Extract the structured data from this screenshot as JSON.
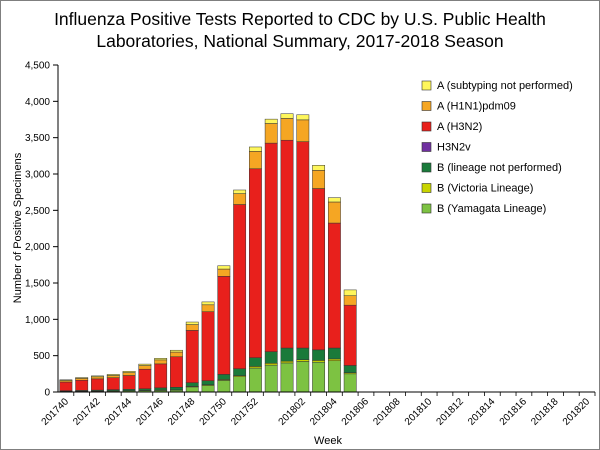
{
  "chart_data": {
    "type": "bar",
    "stacked": true,
    "title_line1": "Influenza Positive Tests Reported to CDC by U.S. Public Health",
    "title_line2": "Laboratories, National Summary, 2017-2018 Season",
    "xlabel": "Week",
    "ylabel": "Number of Positive Specimens",
    "ylim": [
      0,
      4500
    ],
    "yticks": [
      0,
      500,
      1000,
      1500,
      2000,
      2500,
      3000,
      3500,
      4000,
      4500
    ],
    "ytick_labels": [
      "0",
      "500",
      "1,000",
      "1,500",
      "2,000",
      "2,500",
      "3,000",
      "3,500",
      "4,000",
      "4,500"
    ],
    "categories": [
      "201740",
      "201741",
      "201742",
      "201743",
      "201744",
      "201745",
      "201746",
      "201747",
      "201748",
      "201749",
      "201750",
      "201751",
      "201752",
      "201753",
      "201801",
      "201802",
      "201803",
      "201804",
      "201805",
      "201806",
      "201807",
      "201808",
      "201809",
      "201810",
      "201811",
      "201812",
      "201813",
      "201814",
      "201815",
      "201816",
      "201817",
      "201818",
      "201819",
      "201820"
    ],
    "xtick_labels": [
      "201740",
      "201742",
      "201744",
      "201746",
      "201748",
      "201750",
      "201752",
      "201802",
      "201804",
      "201806",
      "201808",
      "201810",
      "201812",
      "201814",
      "201816",
      "201818",
      "201820"
    ],
    "legend_position": "top-right",
    "series": [
      {
        "name": "B (Yamagata Lineage)",
        "color": "#7dc242",
        "values": [
          8,
          10,
          12,
          14,
          16,
          18,
          22,
          25,
          70,
          90,
          160,
          210,
          330,
          370,
          400,
          420,
          410,
          430,
          250,
          0,
          0,
          0,
          0,
          0,
          0,
          0,
          0,
          0,
          0,
          0,
          0,
          0,
          0,
          0
        ]
      },
      {
        "name": "B (Victoria Lineage)",
        "color": "#c8d400",
        "values": [
          2,
          2,
          2,
          3,
          3,
          4,
          5,
          5,
          8,
          10,
          12,
          15,
          22,
          25,
          25,
          25,
          25,
          25,
          15,
          0,
          0,
          0,
          0,
          0,
          0,
          0,
          0,
          0,
          0,
          0,
          0,
          0,
          0,
          0
        ]
      },
      {
        "name": "B (lineage not performed)",
        "color": "#1a7a3a",
        "values": [
          8,
          10,
          12,
          15,
          18,
          22,
          30,
          35,
          50,
          55,
          70,
          95,
          120,
          160,
          180,
          160,
          145,
          150,
          100,
          0,
          0,
          0,
          0,
          0,
          0,
          0,
          0,
          0,
          0,
          0,
          0,
          0,
          0,
          0
        ]
      },
      {
        "name": "H3N2v",
        "color": "#7030a0",
        "values": [
          0,
          0,
          0,
          0,
          0,
          0,
          0,
          0,
          0,
          0,
          0,
          0,
          0,
          0,
          0,
          0,
          0,
          0,
          0,
          0,
          0,
          0,
          0,
          0,
          0,
          0,
          0,
          0,
          0,
          0,
          0,
          0,
          0,
          0
        ]
      },
      {
        "name": "A (H3N2)",
        "color": "#e8201c",
        "values": [
          120,
          140,
          155,
          165,
          190,
          270,
          330,
          420,
          720,
          950,
          1350,
          2260,
          2600,
          2870,
          2860,
          2840,
          2220,
          1720,
          830,
          0,
          0,
          0,
          0,
          0,
          0,
          0,
          0,
          0,
          0,
          0,
          0,
          0,
          0,
          0
        ]
      },
      {
        "name": "A (H1N1)pdm09",
        "color": "#f5a623",
        "values": [
          20,
          25,
          28,
          30,
          40,
          50,
          55,
          65,
          80,
          95,
          100,
          150,
          240,
          270,
          300,
          300,
          250,
          290,
          130,
          0,
          0,
          0,
          0,
          0,
          0,
          0,
          0,
          0,
          0,
          0,
          0,
          0,
          0,
          0
        ]
      },
      {
        "name": "A (subtyping not performed)",
        "color": "#fef65b",
        "values": [
          10,
          12,
          13,
          15,
          18,
          20,
          22,
          25,
          35,
          40,
          45,
          50,
          60,
          60,
          65,
          70,
          70,
          60,
          80,
          0,
          0,
          0,
          0,
          0,
          0,
          0,
          0,
          0,
          0,
          0,
          0,
          0,
          0,
          0
        ]
      }
    ],
    "legend_order": [
      "A (subtyping not performed)",
      "A (H1N1)pdm09",
      "A (H3N2)",
      "H3N2v",
      "B (lineage not performed)",
      "B (Victoria Lineage)",
      "B (Yamagata Lineage)"
    ]
  }
}
